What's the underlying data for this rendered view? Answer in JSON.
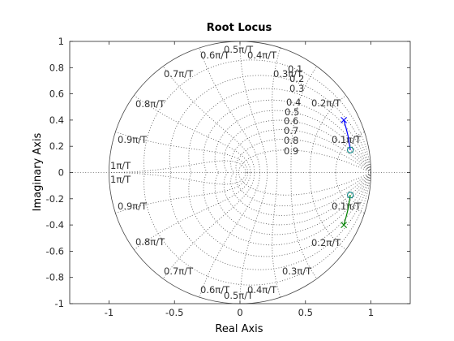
{
  "chart_data": {
    "type": "line",
    "title": "Root Locus",
    "xlabel": "Real Axis",
    "ylabel": "Imaginary Axis",
    "xlim": [
      -1.3,
      1.3
    ],
    "ylim": [
      -1,
      1
    ],
    "xticks": [
      -1,
      -0.5,
      0,
      0.5,
      1
    ],
    "xtick_labels": [
      "-1",
      "-0.5",
      "0",
      "0.5",
      "1"
    ],
    "yticks": [
      -1,
      -0.8,
      -0.6,
      -0.4,
      -0.2,
      0,
      0.2,
      0.4,
      0.6,
      0.8,
      1
    ],
    "ytick_labels": [
      "-1",
      "-0.8",
      "-0.6",
      "-0.4",
      "-0.2",
      "0",
      "0.2",
      "0.4",
      "0.6",
      "0.8",
      "1"
    ],
    "zgrid": {
      "damping_ratios": [
        0.1,
        0.2,
        0.3,
        0.4,
        0.5,
        0.6,
        0.7,
        0.8,
        0.9
      ],
      "damping_labels": [
        "0.1",
        "0.2",
        "0.3",
        "0.4",
        "0.5",
        "0.6",
        "0.7",
        "0.8",
        "0.9"
      ],
      "natural_frequencies": [
        0.1,
        0.2,
        0.3,
        0.4,
        0.5,
        0.6,
        0.7,
        0.8,
        0.9,
        1.0
      ],
      "frequency_labels": [
        "0.1π/T",
        "0.2π/T",
        "0.3π/T",
        "0.4π/T",
        "0.5π/T",
        "0.6π/T",
        "0.7π/T",
        "0.8π/T",
        "0.9π/T",
        "1π/T"
      ]
    },
    "series": [
      {
        "values": [
          [
            0.793,
            0.4
          ],
          [
            0.81,
            0.34
          ],
          [
            0.825,
            0.28
          ],
          [
            0.835,
            0.22
          ],
          [
            0.843,
            0.172
          ]
        ],
        "color": "#0000ff"
      },
      {
        "values": [
          [
            0.793,
            -0.4
          ],
          [
            0.81,
            -0.34
          ],
          [
            0.825,
            -0.28
          ],
          [
            0.835,
            -0.22
          ],
          [
            0.843,
            -0.172
          ]
        ],
        "color": "#008000"
      }
    ],
    "poles": [
      [
        0.793,
        0.4
      ],
      [
        0.793,
        -0.4
      ]
    ],
    "zeros": [
      [
        0.843,
        0.172
      ],
      [
        0.843,
        -0.172
      ]
    ],
    "unit_circle": true,
    "colors": {
      "axes": "#262626",
      "grid": "#555555",
      "pole": "#0000ff",
      "zero": "#008080",
      "locus_upper": "#0000ff",
      "locus_lower": "#008000"
    }
  }
}
